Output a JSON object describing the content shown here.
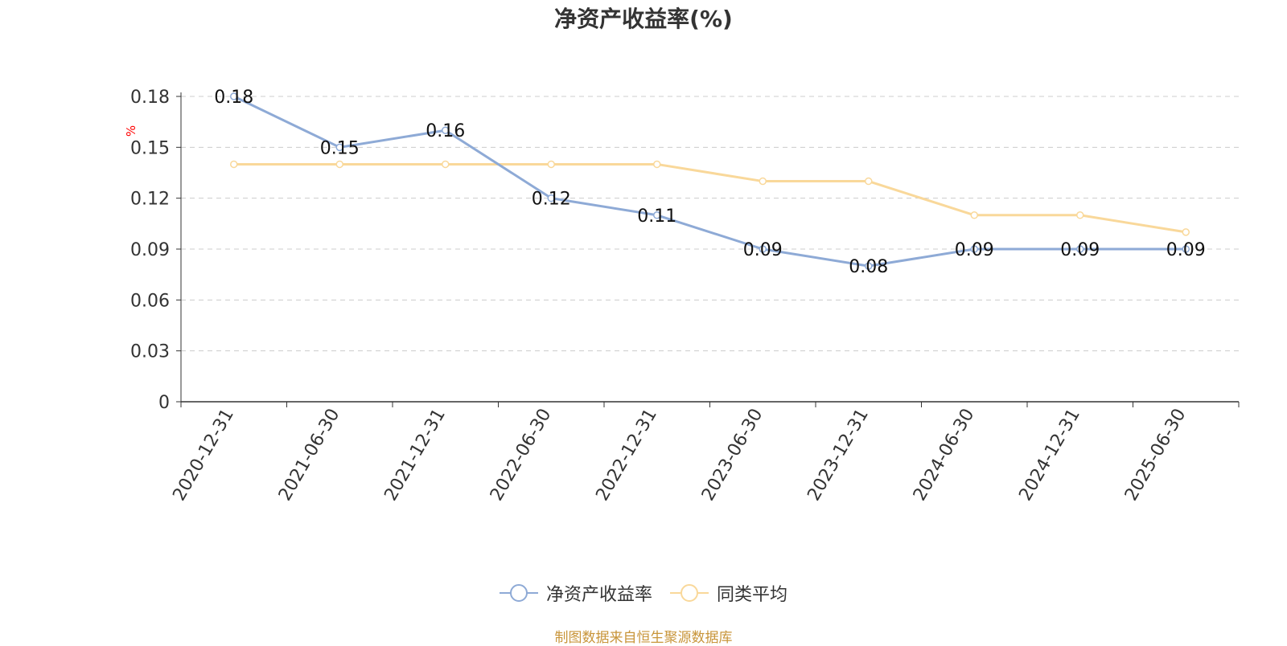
{
  "chart_data": {
    "type": "line",
    "title": "净资产收益率(%)",
    "ylabel": "%",
    "xlabel": "",
    "categories": [
      "2020-12-31",
      "2021-06-30",
      "2021-12-31",
      "2022-06-30",
      "2022-12-31",
      "2023-06-30",
      "2023-12-31",
      "2024-06-30",
      "2024-12-31",
      "2025-06-30"
    ],
    "ylim": [
      0,
      0.18
    ],
    "yticks": [
      "0",
      "0.03",
      "0.06",
      "0.09",
      "0.12",
      "0.15",
      "0.18"
    ],
    "grid": true,
    "legend_position": "bottom",
    "series": [
      {
        "name": "净资产收益率",
        "color": "#8eaad6",
        "values": [
          0.18,
          0.15,
          0.16,
          0.12,
          0.11,
          0.09,
          0.08,
          0.09,
          0.09,
          0.09
        ],
        "labels": [
          "0.18",
          "0.15",
          "0.16",
          "0.12",
          "0.11",
          "0.09",
          "0.08",
          "0.09",
          "0.09",
          "0.09"
        ]
      },
      {
        "name": "同类平均",
        "color": "#f9d89a",
        "values": [
          0.14,
          0.14,
          0.14,
          0.14,
          0.14,
          0.13,
          0.13,
          0.11,
          0.11,
          0.1
        ]
      }
    ]
  },
  "source_note": "制图数据来自恒生聚源数据库",
  "colors": {
    "axis": "#333333",
    "grid": "#cccccc",
    "ylabel": "#ff0000",
    "source": "#c8953a"
  }
}
